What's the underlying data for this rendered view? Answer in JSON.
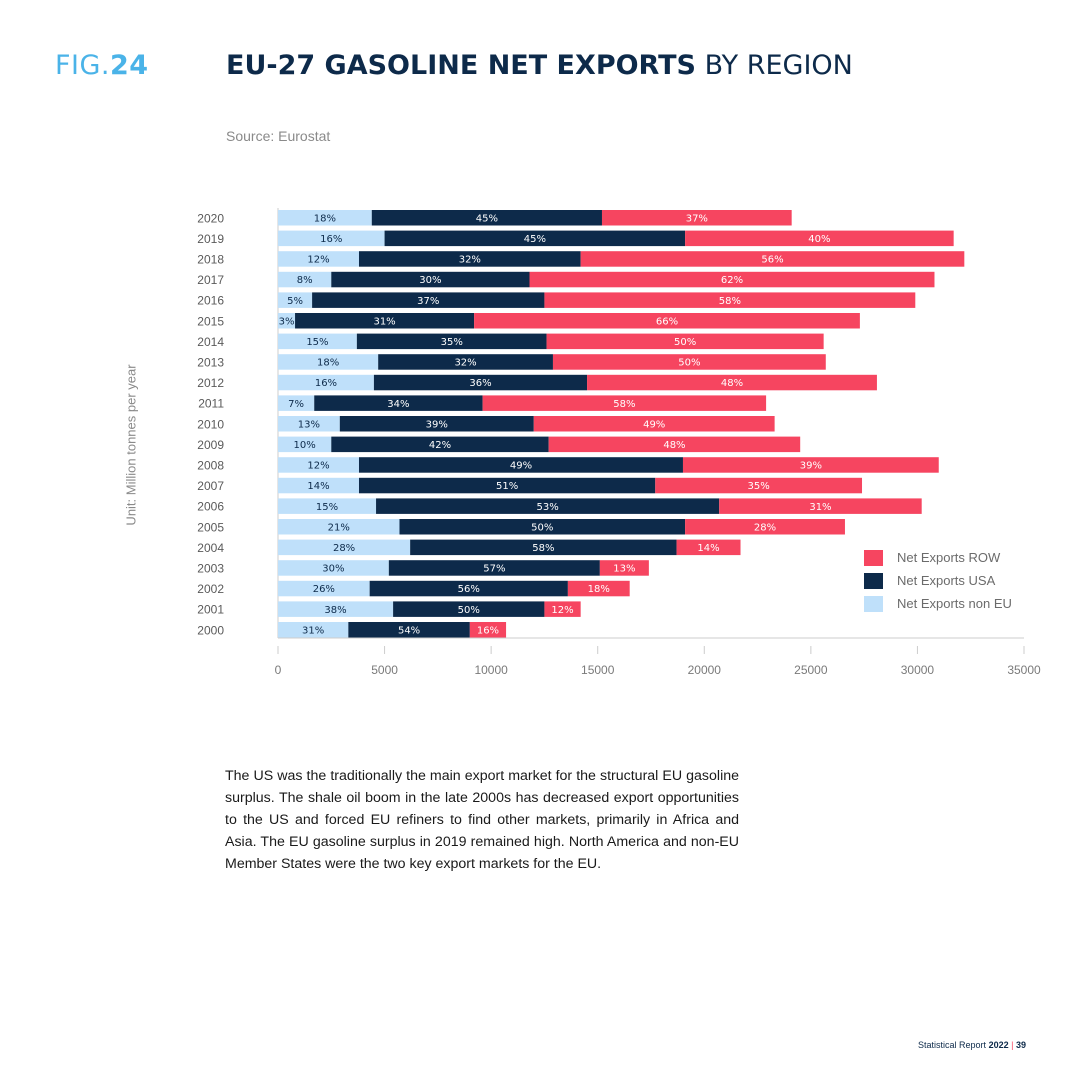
{
  "figure": {
    "prefix": "FIG.",
    "number": "24"
  },
  "title": {
    "bold": "EU-27 GASOLINE NET EXPORTS",
    "regular": "BY REGION"
  },
  "source": "Source: Eurostat",
  "unit_label": "Unit: Million tonnes per year",
  "colors": {
    "non_eu": "#bfe0fa",
    "usa": "#0d2a4a",
    "row": "#f64560",
    "axis": "#cccccc"
  },
  "legend": [
    {
      "label": "Net Exports ROW",
      "color": "#f64560"
    },
    {
      "label": "Net Exports USA",
      "color": "#0d2a4a"
    },
    {
      "label": "Net Exports non EU",
      "color": "#bfe0fa"
    }
  ],
  "chart_data": {
    "type": "bar",
    "orientation": "horizontal",
    "stacked": true,
    "xlim": [
      0,
      35000
    ],
    "xticks": [
      "0",
      "5000",
      "10000",
      "15000",
      "20000",
      "25000",
      "30000",
      "35000"
    ],
    "categories": [
      "2020",
      "2019",
      "2018",
      "2017",
      "2016",
      "2015",
      "2014",
      "2013",
      "2012",
      "2011",
      "2010",
      "2009",
      "2008",
      "2007",
      "2006",
      "2005",
      "2004",
      "2003",
      "2002",
      "2001",
      "2000"
    ],
    "series": [
      {
        "name": "Net Exports non EU",
        "values": [
          4400,
          5000,
          3800,
          2500,
          1600,
          800,
          3700,
          4700,
          4500,
          1700,
          2900,
          2500,
          3800,
          3800,
          4600,
          5700,
          6200,
          5200,
          4300,
          5400,
          3300
        ],
        "labels": [
          "18%",
          "16%",
          "12%",
          "8%",
          "5%",
          "3%",
          "15%",
          "18%",
          "16%",
          "7%",
          "13%",
          "10%",
          "12%",
          "14%",
          "15%",
          "21%",
          "28%",
          "30%",
          "26%",
          "38%",
          "31%"
        ]
      },
      {
        "name": "Net Exports USA",
        "values": [
          10800,
          14100,
          10400,
          9300,
          10900,
          8400,
          8900,
          8200,
          10000,
          7900,
          9100,
          10200,
          15200,
          13900,
          16100,
          13400,
          12500,
          9900,
          9300,
          7100,
          5700
        ],
        "labels": [
          "45%",
          "45%",
          "32%",
          "30%",
          "37%",
          "31%",
          "35%",
          "32%",
          "36%",
          "34%",
          "39%",
          "42%",
          "49%",
          "51%",
          "53%",
          "50%",
          "58%",
          "57%",
          "56%",
          "50%",
          "54%"
        ]
      },
      {
        "name": "Net Exports ROW",
        "values": [
          8900,
          12600,
          18000,
          19000,
          17400,
          18100,
          13000,
          12800,
          13600,
          13300,
          11300,
          11800,
          12000,
          9700,
          9500,
          7500,
          3000,
          2300,
          2900,
          1700,
          1700
        ],
        "labels": [
          "37%",
          "40%",
          "56%",
          "62%",
          "58%",
          "66%",
          "50%",
          "50%",
          "48%",
          "58%",
          "49%",
          "48%",
          "39%",
          "35%",
          "31%",
          "28%",
          "14%",
          "13%",
          "18%",
          "12%",
          "16%"
        ]
      }
    ]
  },
  "body_text": "The US was the traditionally the main export market for the structural EU gasoline surplus. The shale oil boom in the late 2000s has decreased export opportunities to the US and forced EU refiners to find other markets, primarily in Africa and Asia. The EU gasoline surplus in 2019 remained high. North America and non-EU Member States were the two key export markets for the EU.",
  "footer": {
    "text": "Statistical Report",
    "year": "2022",
    "separator": "|",
    "page": "39"
  }
}
